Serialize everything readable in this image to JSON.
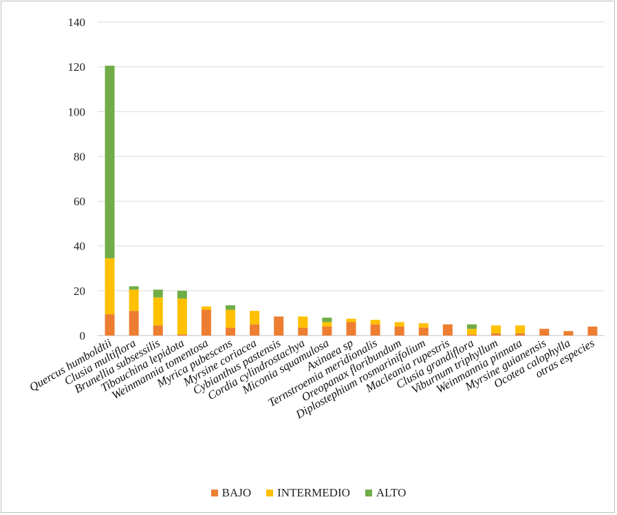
{
  "chart_data": {
    "type": "bar",
    "stacked": true,
    "title": "",
    "xlabel": "",
    "ylabel": "",
    "ylim": [
      0,
      140
    ],
    "y_ticks": [
      "0",
      "20",
      "40",
      "60",
      "80",
      "100",
      "120",
      "140"
    ],
    "grid": true,
    "legend_position": "bottom",
    "categories": [
      "Quercus humboldtii",
      "Clusia multiflora",
      "Brunellia subsessilis",
      "Tibouchina lepidota",
      "Weinmannia tomentosa",
      "Myrica pubescens",
      "Myrsine coriacea",
      "Cybianthus pastensis",
      "Cordia cylindrostachya",
      "Miconia squamulosa",
      "Axinaea sp",
      "Ternstroemia meridionalis",
      "Oreopanax floribundum",
      "Diplostephium rosmarinifolium",
      "Macleania rupestris",
      "Clusia grandiflora",
      "Viburnum triphyllum",
      "Weinmannia pinnata",
      "Myrsine guianensis",
      "Ocotea calophylla",
      "otras especies"
    ],
    "series": [
      {
        "name": "BAJO",
        "color": "#ED7D31",
        "values": [
          9.5,
          11,
          4.5,
          0.5,
          11.5,
          3.5,
          5,
          8.5,
          3.5,
          4,
          6,
          5,
          4,
          3.5,
          5,
          0.5,
          1,
          1,
          3,
          2,
          4
        ]
      },
      {
        "name": "INTERMEDIO",
        "color": "#FFC000",
        "values": [
          25,
          9.5,
          12.5,
          16,
          1.5,
          8,
          6,
          0,
          5,
          2,
          1.5,
          2,
          2,
          2,
          0,
          2.5,
          3.5,
          3.5,
          0,
          0,
          0
        ]
      },
      {
        "name": "ALTO",
        "color": "#70AD47",
        "values": [
          86,
          1.5,
          3.5,
          3.5,
          0,
          2,
          0,
          0,
          0,
          2,
          0,
          0,
          0,
          0,
          0,
          2,
          0,
          0,
          0,
          0,
          0
        ]
      }
    ]
  }
}
